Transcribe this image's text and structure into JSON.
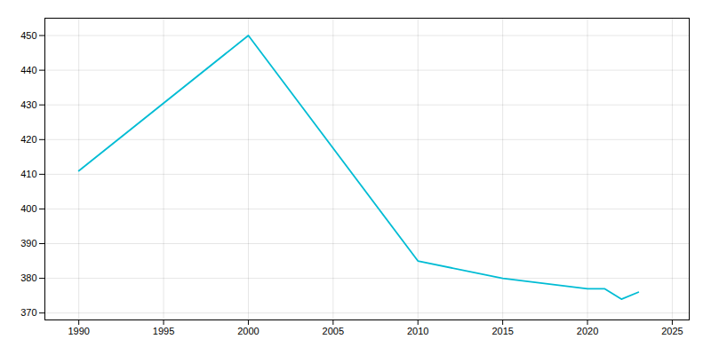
{
  "chart_data": {
    "type": "line",
    "x": [
      1990,
      2000,
      2010,
      2015,
      2020,
      2021,
      2022,
      2023
    ],
    "values": [
      411,
      450,
      385,
      380,
      377,
      377,
      374,
      376
    ],
    "color": "#00bcd4",
    "xlim": [
      1988,
      2026
    ],
    "ylim": [
      368,
      455
    ],
    "xticks": [
      1990,
      1995,
      2000,
      2005,
      2010,
      2015,
      2020,
      2025
    ],
    "yticks": [
      370,
      380,
      390,
      400,
      410,
      420,
      430,
      440,
      450
    ],
    "grid": true
  }
}
